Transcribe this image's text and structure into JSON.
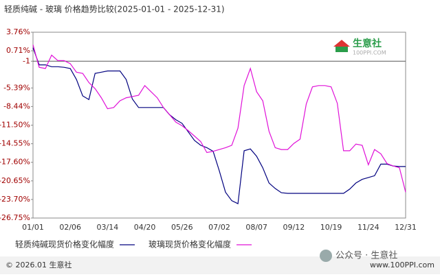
{
  "chart_data": {
    "type": "line",
    "title": "轻质纯碱 - 玻璃 价格趋势比较(2025-01-01 - 2025-12-31)",
    "categories": [
      "01/01",
      null,
      null,
      null,
      null,
      null,
      "02/06",
      null,
      null,
      null,
      null,
      null,
      "03/14",
      null,
      null,
      null,
      null,
      null,
      "04/20",
      null,
      null,
      null,
      null,
      null,
      "05/26",
      null,
      null,
      null,
      null,
      null,
      "07/02",
      null,
      null,
      null,
      null,
      null,
      "08/07",
      null,
      null,
      null,
      null,
      null,
      "09/12",
      null,
      null,
      null,
      null,
      null,
      "10/19",
      null,
      null,
      null,
      null,
      null,
      "11/24",
      null,
      null,
      null,
      null,
      null,
      "12/31"
    ],
    "series": [
      {
        "name": "轻质纯碱现货价格变化幅度",
        "color": "#00007f",
        "values": [
          1.2,
          -1.6,
          -1.6,
          -1.9,
          -1.9,
          -2.0,
          -2.2,
          -4.0,
          -6.7,
          -7.3,
          -3.0,
          -2.8,
          -2.6,
          -2.6,
          -2.6,
          -4.0,
          -7.2,
          -8.6,
          -8.6,
          -8.6,
          -8.6,
          -8.6,
          -9.8,
          -10.6,
          -11.2,
          -12.6,
          -14.0,
          -14.8,
          -15.2,
          -15.8,
          -19.0,
          -22.5,
          -23.9,
          -24.4,
          -15.7,
          -15.4,
          -16.6,
          -18.5,
          -21.0,
          -21.9,
          -22.6,
          -22.7,
          -22.7,
          -22.7,
          -22.7,
          -22.7,
          -22.7,
          -22.7,
          -22.7,
          -22.7,
          -22.7,
          -22.0,
          -21.0,
          -20.4,
          -20.1,
          -19.8,
          -17.9,
          -17.9,
          -18.2,
          -18.3,
          -18.3
        ]
      },
      {
        "name": "玻璃现货价格变化幅度",
        "color": "#e010d8",
        "values": [
          1.7,
          -2.0,
          -2.2,
          0.0,
          -0.9,
          -0.9,
          -1.4,
          -2.8,
          -3.0,
          -4.5,
          -5.5,
          -7.0,
          -8.8,
          -8.6,
          -7.5,
          -7.0,
          -6.8,
          -6.6,
          -5.0,
          -6.0,
          -7.0,
          -8.6,
          -9.8,
          -11.0,
          -11.6,
          -12.4,
          -13.3,
          -14.2,
          -16.0,
          -15.8,
          -15.5,
          -15.2,
          -14.8,
          -12.0,
          -5.0,
          -2.2,
          -6.0,
          -7.5,
          -12.5,
          -15.2,
          -15.5,
          -15.5,
          -14.5,
          -13.8,
          -8.0,
          -5.2,
          -5.0,
          -5.0,
          -5.2,
          -7.9,
          -15.7,
          -15.7,
          -14.6,
          -14.8,
          -18.0,
          -15.5,
          -16.2,
          -17.8,
          -18.2,
          -18.5,
          -22.5
        ]
      }
    ],
    "ylim": [
      -26.75,
      3.76
    ],
    "yticks": [
      {
        "value": 3.76,
        "label": "3.76%"
      },
      {
        "value": 0.71,
        "label": "0.71%"
      },
      -1,
      {
        "value": -5.39,
        "label": "-5.39%"
      },
      {
        "value": -8.44,
        "label": "-8.44%"
      },
      {
        "value": -11.5,
        "label": "-11.50%"
      },
      {
        "value": -14.55,
        "label": "-14.55%"
      },
      {
        "value": -17.6,
        "label": "-17.60%"
      },
      {
        "value": -20.65,
        "label": "-20.65%"
      },
      {
        "value": -23.7,
        "label": "-23.70%"
      },
      {
        "value": -26.75,
        "label": "-26.75%"
      }
    ],
    "baseline": -1,
    "grid": false,
    "logo": "生意社",
    "logo_sub": "100PPI.COM",
    "footer": "© 2026.01 生意社",
    "watermark": "公众号 · 生意社",
    "watermark_url": "www.100PPI.com"
  }
}
